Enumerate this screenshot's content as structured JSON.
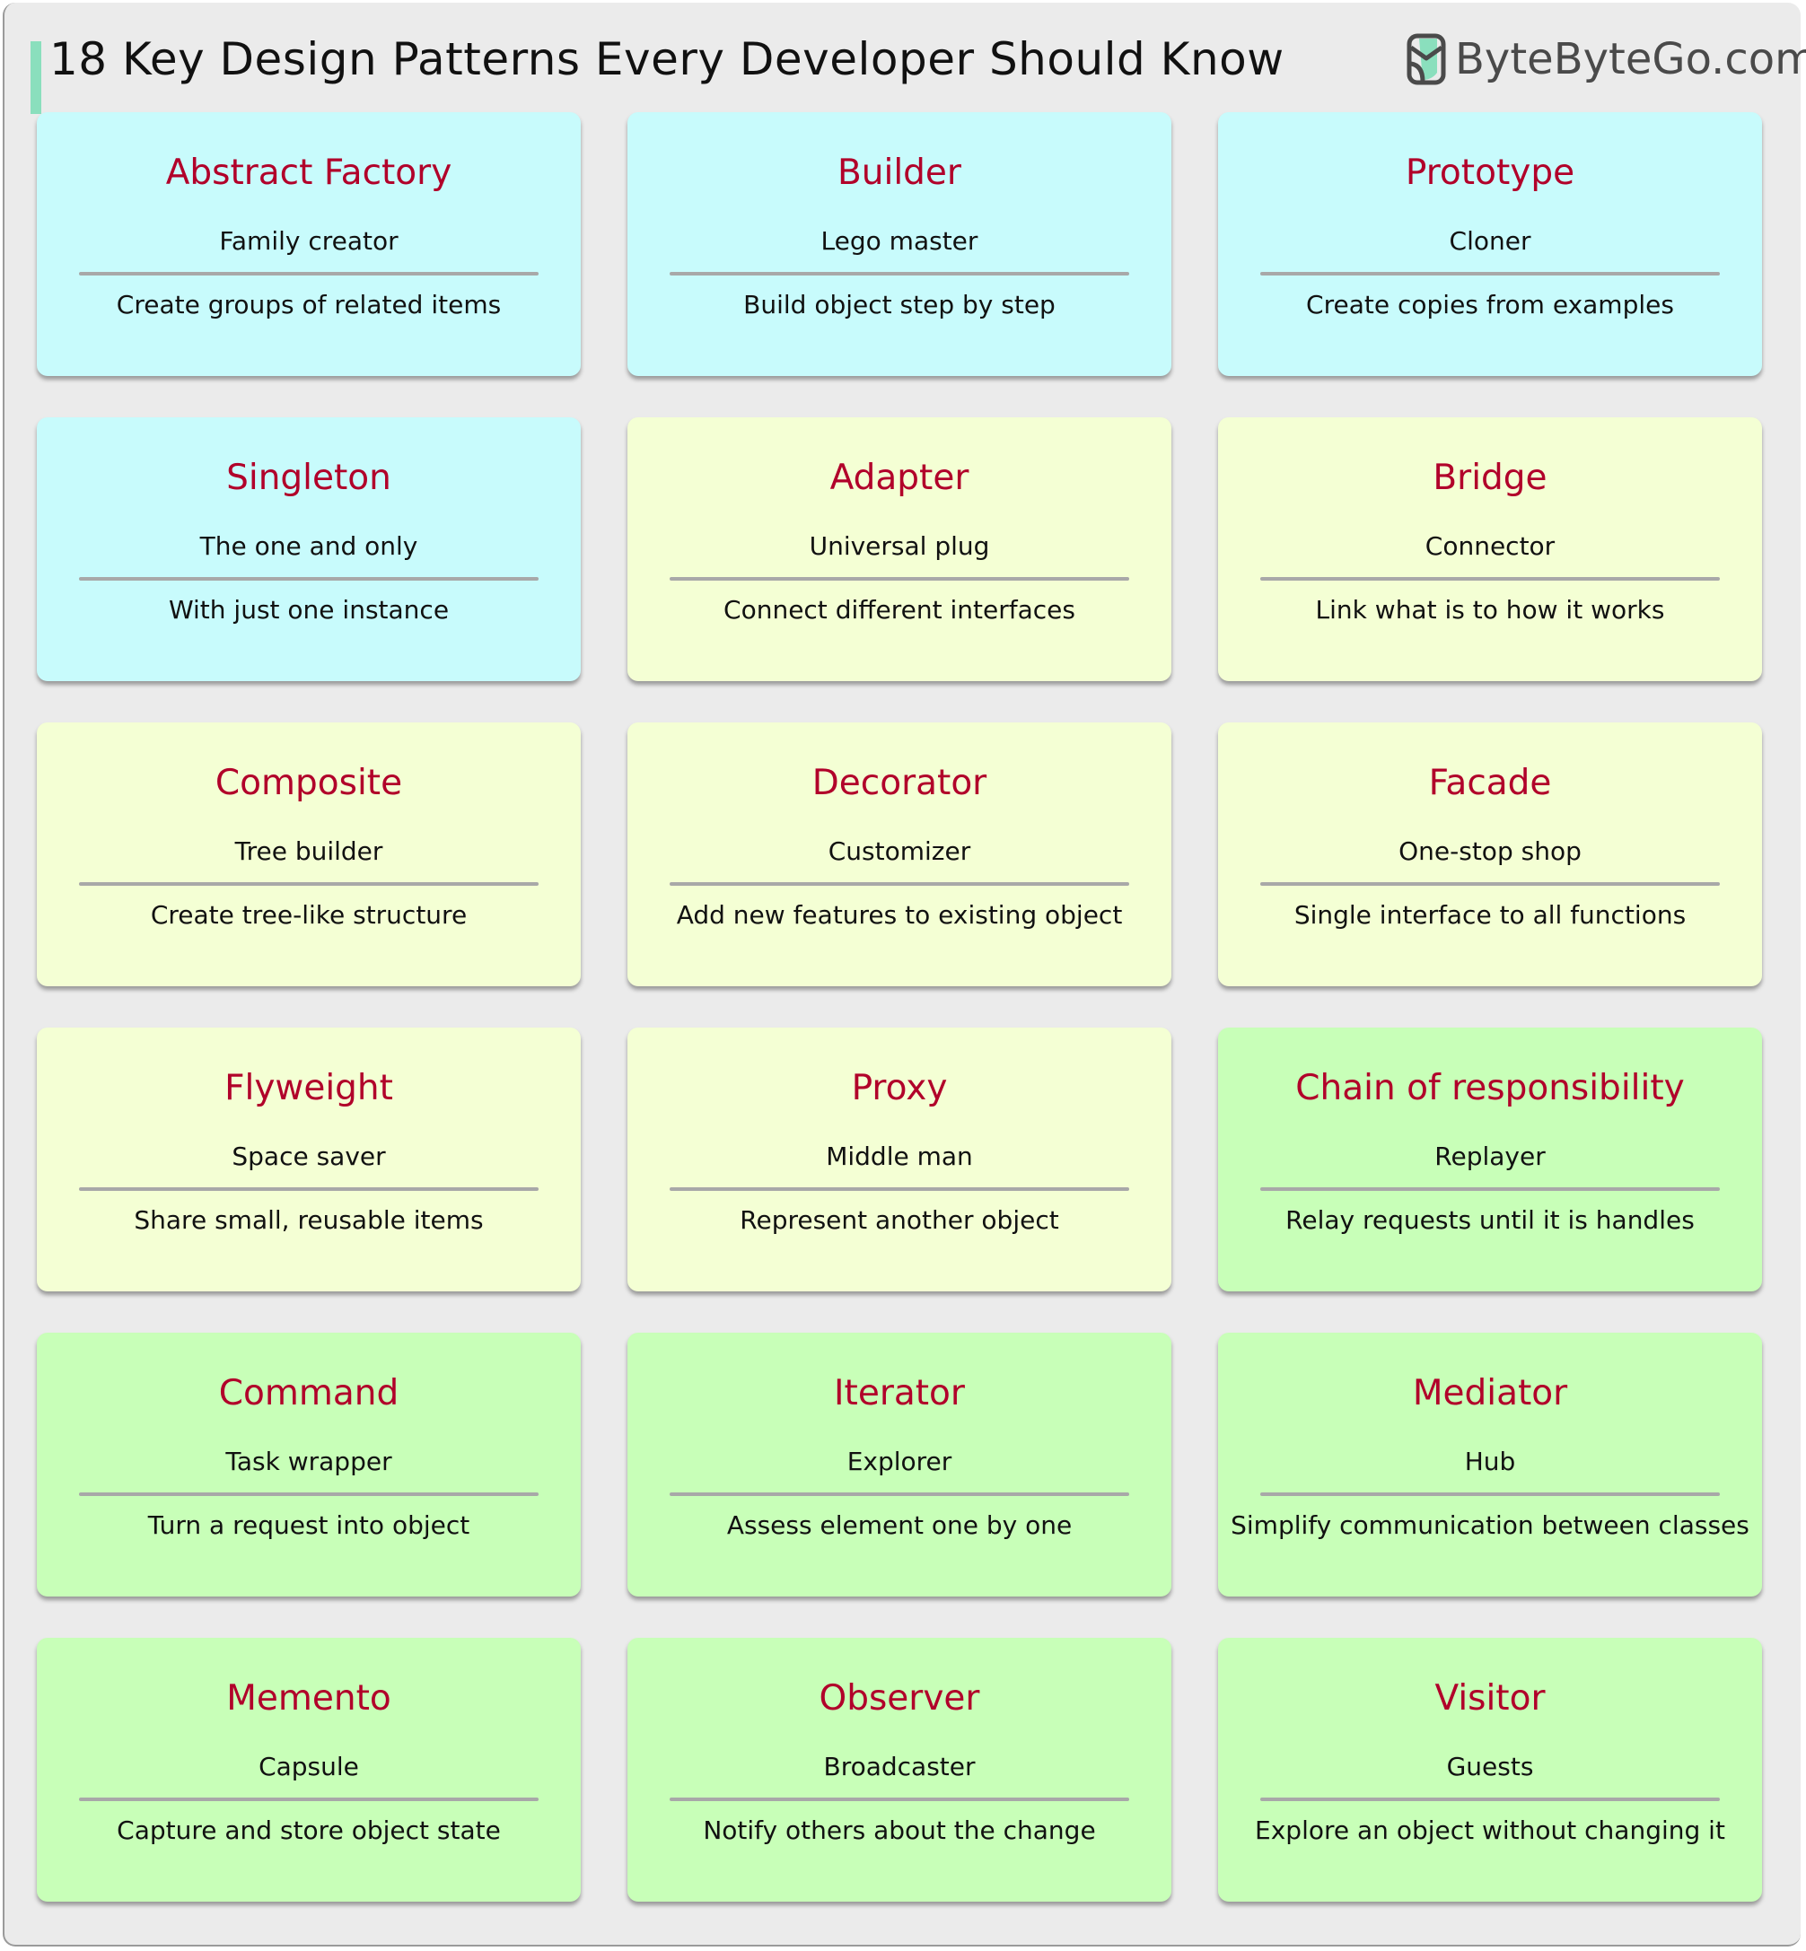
{
  "header": {
    "title": "18 Key Design Patterns Every Developer Should Know",
    "logo_text": "ByteByteGo.com",
    "accent_color": "#8adfbd"
  },
  "colors": {
    "creational": "#c8fbfc",
    "structural": "#f4ffd4",
    "behavioral": "#c8ffb8",
    "title_text": "#b1002a"
  },
  "patterns": [
    {
      "name": "Abstract Factory",
      "nickname": "Family creator",
      "description": "Create groups of related items",
      "group": "creational"
    },
    {
      "name": "Builder",
      "nickname": "Lego master",
      "description": "Build object step by step",
      "group": "creational"
    },
    {
      "name": "Prototype",
      "nickname": "Cloner",
      "description": "Create copies from examples",
      "group": "creational"
    },
    {
      "name": "Singleton",
      "nickname": "The one and only",
      "description": "With just one instance",
      "group": "creational"
    },
    {
      "name": "Adapter",
      "nickname": "Universal plug",
      "description": "Connect different interfaces",
      "group": "structural"
    },
    {
      "name": "Bridge",
      "nickname": "Connector",
      "description": "Link what is to how it works",
      "group": "structural"
    },
    {
      "name": "Composite",
      "nickname": "Tree builder",
      "description": "Create tree-like structure",
      "group": "structural"
    },
    {
      "name": "Decorator",
      "nickname": "Customizer",
      "description": "Add new features to existing object",
      "group": "structural"
    },
    {
      "name": "Facade",
      "nickname": "One-stop shop",
      "description": "Single interface to all functions",
      "group": "structural"
    },
    {
      "name": "Flyweight",
      "nickname": "Space saver",
      "description": "Share small, reusable items",
      "group": "structural"
    },
    {
      "name": "Proxy",
      "nickname": "Middle man",
      "description": "Represent another object",
      "group": "structural"
    },
    {
      "name": "Chain of responsibility",
      "nickname": "Replayer",
      "description": "Relay requests until it is handles",
      "group": "behavioral"
    },
    {
      "name": "Command",
      "nickname": "Task wrapper",
      "description": "Turn a request into object",
      "group": "behavioral"
    },
    {
      "name": "Iterator",
      "nickname": "Explorer",
      "description": "Assess element one by one",
      "group": "behavioral"
    },
    {
      "name": "Mediator",
      "nickname": "Hub",
      "description": "Simplify communication between classes",
      "group": "behavioral"
    },
    {
      "name": "Memento",
      "nickname": "Capsule",
      "description": "Capture and store object state",
      "group": "behavioral"
    },
    {
      "name": "Observer",
      "nickname": "Broadcaster",
      "description": "Notify others about the change",
      "group": "behavioral"
    },
    {
      "name": "Visitor",
      "nickname": "Guests",
      "description": "Explore an object without changing it",
      "group": "behavioral"
    }
  ]
}
